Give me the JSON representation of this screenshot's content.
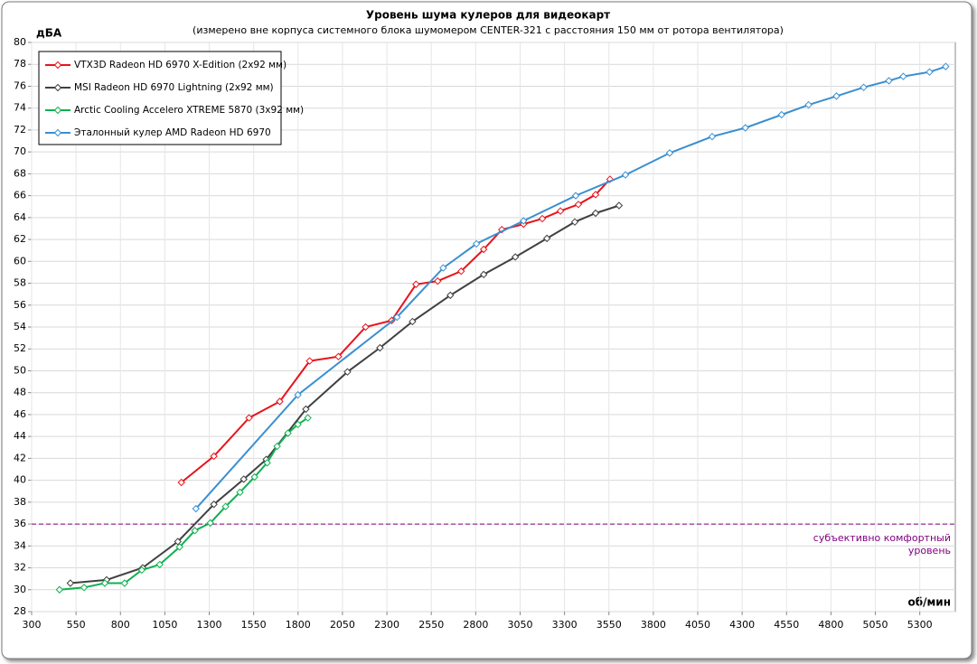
{
  "chart_data": {
    "type": "line",
    "title": "Уровень шума кулеров для видеокарт",
    "subtitle": "(измерено вне корпуса системного блока шумомером CENTER-321 с расстояния 150  мм от ротора вентилятора)",
    "y_label": "дБА",
    "x_label": "об/мин",
    "xlim": [
      300,
      5500
    ],
    "ylim": [
      28,
      80
    ],
    "xticks": [
      300,
      550,
      800,
      1050,
      1300,
      1550,
      1800,
      2050,
      2300,
      2550,
      2800,
      3050,
      3300,
      3550,
      3800,
      4050,
      4300,
      4550,
      4800,
      5050,
      5300
    ],
    "yticks": [
      28,
      30,
      32,
      34,
      36,
      38,
      40,
      42,
      44,
      46,
      48,
      50,
      52,
      54,
      56,
      58,
      60,
      62,
      64,
      66,
      68,
      70,
      72,
      74,
      76,
      78,
      80
    ],
    "grid": true,
    "legend": "upper left",
    "reference_line": {
      "value": 36,
      "color": "#800080",
      "label": [
        "субъективно комфортный",
        "уровень"
      ]
    },
    "series": [
      {
        "name": "VTX3D Radeon HD 6970 X-Edition (2x92 мм)",
        "color": "#e8141c",
        "x": [
          1143,
          1326,
          1524,
          1697,
          1865,
          2027,
          2180,
          2327,
          2464,
          2586,
          2718,
          2845,
          2947,
          3069,
          3175,
          3277,
          3378,
          3475,
          3556
        ],
        "values": [
          39.8,
          42.2,
          45.7,
          47.2,
          50.9,
          51.3,
          54.0,
          54.6,
          57.9,
          58.2,
          59.1,
          61.1,
          62.9,
          63.4,
          63.9,
          64.6,
          65.2,
          66.1,
          67.5
        ]
      },
      {
        "name": "MSI Radeon HD 6970 Lightning (2x92 мм)",
        "color": "#404040",
        "x": [
          518,
          722,
          925,
          1123,
          1326,
          1494,
          1621,
          1844,
          2078,
          2261,
          2444,
          2657,
          2845,
          3023,
          3201,
          3358,
          3475,
          3607
        ],
        "values": [
          30.6,
          30.9,
          32.0,
          34.4,
          37.8,
          40.1,
          41.9,
          46.5,
          49.9,
          52.1,
          54.5,
          56.9,
          58.8,
          60.4,
          62.1,
          63.6,
          64.4,
          65.1
        ]
      },
      {
        "name": "Arctic Cooling Accelero XTREME 5870 (3x92 мм)",
        "color": "#10b050",
        "x": [
          457,
          595,
          712,
          823,
          920,
          1021,
          1133,
          1219,
          1306,
          1392,
          1473,
          1555,
          1626,
          1682,
          1743,
          1799,
          1855
        ],
        "values": [
          30.0,
          30.2,
          30.6,
          30.6,
          31.8,
          32.3,
          33.9,
          35.4,
          36.1,
          37.6,
          38.9,
          40.3,
          41.6,
          43.1,
          44.3,
          45.1,
          45.7
        ]
      },
      {
        "name": "Эталонный кулер AMD Radeon HD 6970",
        "color": "#3a8fd0",
        "x": [
          1225,
          1799,
          2357,
          2617,
          2804,
          3069,
          3363,
          3643,
          3892,
          4131,
          4318,
          4522,
          4674,
          4831,
          4984,
          5126,
          5207,
          5355,
          5446
        ],
        "values": [
          37.4,
          47.8,
          54.9,
          59.4,
          61.6,
          63.7,
          66.0,
          67.9,
          69.9,
          71.4,
          72.2,
          73.4,
          74.3,
          75.1,
          75.9,
          76.5,
          76.9,
          77.3,
          77.8
        ]
      }
    ]
  }
}
